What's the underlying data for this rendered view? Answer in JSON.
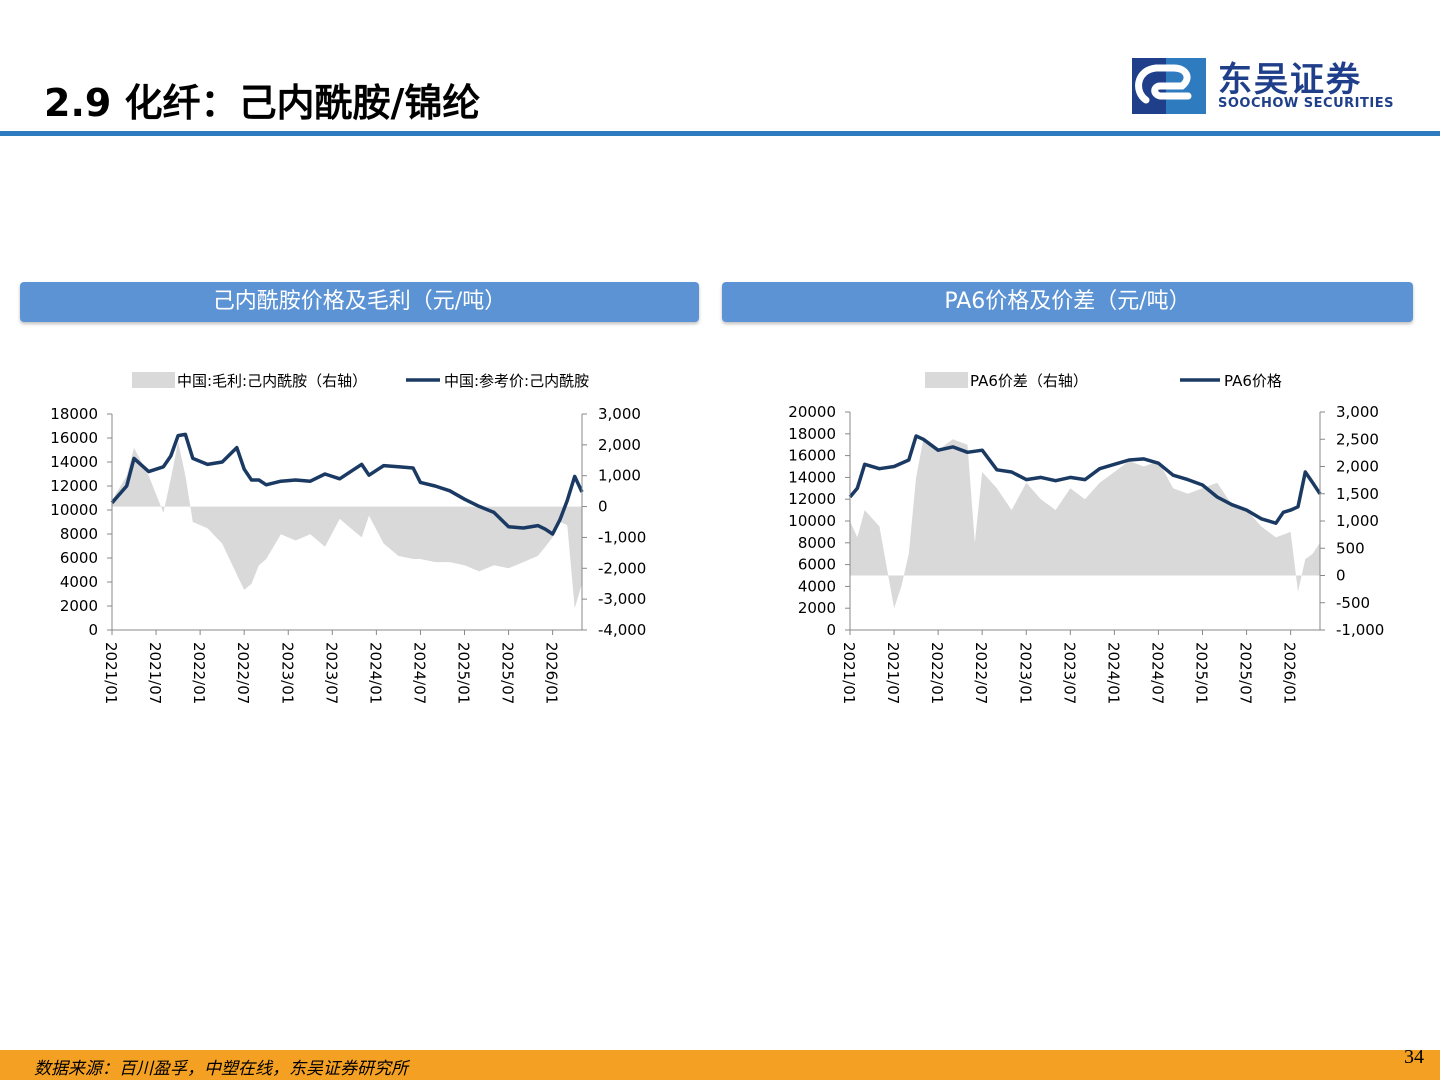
{
  "header": {
    "title": "2.9 化纤：己内酰胺/锦纶",
    "logo_cn": "东吴证券",
    "logo_en": "SOOCHOW SECURITIES"
  },
  "footer": {
    "source": "数据来源：百川盈孚，中塑在线，东吴证券研究所",
    "page_number": "34"
  },
  "colors": {
    "accent": "#2e7bbf",
    "panel_header": "#5b93d5",
    "line": "#1b3a63",
    "area": "#d9d9d9",
    "footer": "#f4a023",
    "logo": "#1f3f8a"
  },
  "chart_data": [
    {
      "type": "line+area",
      "title": "己内酰胺价格及毛利（元/吨）",
      "x_ticks": [
        "2021/01",
        "2021/07",
        "2022/01",
        "2022/07",
        "2023/01",
        "2023/07",
        "2024/01",
        "2024/07",
        "2025/01",
        "2025/07",
        "2026/01"
      ],
      "x_range": [
        "2021/01",
        "2026/05"
      ],
      "left_axis": {
        "min": 0,
        "max": 18000,
        "step": 2000,
        "labels": [
          "0",
          "2000",
          "4000",
          "6000",
          "8000",
          "10000",
          "12000",
          "14000",
          "16000",
          "18000"
        ]
      },
      "right_axis": {
        "min": -4000,
        "max": 3000,
        "step": 1000,
        "labels": [
          "-4,000",
          "-3,000",
          "-2,000",
          "-1,000",
          "0",
          "1,000",
          "2,000",
          "3,000"
        ]
      },
      "legend": {
        "area": "中国:毛利:己内酰胺（右轴）",
        "line": "中国:参考价:己内酰胺"
      },
      "line_series": {
        "name": "中国:参考价:己内酰胺",
        "x": [
          "2021/01",
          "2021/03",
          "2021/04",
          "2021/06",
          "2021/08",
          "2021/09",
          "2021/10",
          "2021/11",
          "2021/12",
          "2022/02",
          "2022/04",
          "2022/06",
          "2022/07",
          "2022/08",
          "2022/09",
          "2022/10",
          "2022/12",
          "2023/02",
          "2023/04",
          "2023/06",
          "2023/08",
          "2023/10",
          "2023/11",
          "2023/12",
          "2024/02",
          "2024/04",
          "2024/06",
          "2024/07",
          "2024/09",
          "2024/11",
          "2025/01",
          "2025/03",
          "2025/05",
          "2025/07",
          "2025/09",
          "2025/11",
          "2025/12",
          "2026/01",
          "2026/02",
          "2026/03",
          "2026/04",
          "2026/05"
        ],
        "values": [
          10600,
          12000,
          14300,
          13200,
          13600,
          14500,
          16200,
          16300,
          14300,
          13800,
          14000,
          15200,
          13400,
          12500,
          12500,
          12100,
          12400,
          12500,
          12400,
          13000,
          12600,
          13400,
          13800,
          12900,
          13700,
          13600,
          13500,
          12300,
          12000,
          11600,
          10900,
          10300,
          9800,
          8600,
          8500,
          8700,
          8400,
          8000,
          9200,
          10800,
          12800,
          11500
        ]
      },
      "area_series": {
        "name": "中国:毛利:己内酰胺（右轴）",
        "x": [
          "2021/01",
          "2021/03",
          "2021/04",
          "2021/06",
          "2021/08",
          "2021/09",
          "2021/10",
          "2021/11",
          "2021/12",
          "2022/02",
          "2022/04",
          "2022/06",
          "2022/07",
          "2022/08",
          "2022/09",
          "2022/10",
          "2022/12",
          "2023/02",
          "2023/04",
          "2023/06",
          "2023/08",
          "2023/10",
          "2023/11",
          "2023/12",
          "2024/02",
          "2024/04",
          "2024/06",
          "2024/07",
          "2024/09",
          "2024/11",
          "2025/01",
          "2025/03",
          "2025/05",
          "2025/07",
          "2025/09",
          "2025/11",
          "2025/12",
          "2026/01",
          "2026/02",
          "2026/03",
          "2026/04",
          "2026/05"
        ],
        "values": [
          200,
          1000,
          1900,
          1000,
          -200,
          900,
          2100,
          1000,
          -500,
          -700,
          -1200,
          -2200,
          -2700,
          -2500,
          -1900,
          -1700,
          -900,
          -1100,
          -900,
          -1300,
          -400,
          -800,
          -1000,
          -300,
          -1200,
          -1600,
          -1700,
          -1700,
          -1800,
          -1800,
          -1900,
          -2100,
          -1900,
          -2000,
          -1800,
          -1600,
          -1300,
          -1000,
          -500,
          -600,
          -3300,
          -2500
        ]
      }
    },
    {
      "type": "line+area",
      "title": "PA6价格及价差（元/吨）",
      "x_ticks": [
        "2021/01",
        "2021/07",
        "2022/01",
        "2022/07",
        "2023/01",
        "2023/07",
        "2024/01",
        "2024/07",
        "2025/01",
        "2025/07",
        "2026/01"
      ],
      "x_range": [
        "2021/01",
        "2026/05"
      ],
      "left_axis": {
        "min": 0,
        "max": 20000,
        "step": 2000,
        "labels": [
          "0",
          "2000",
          "4000",
          "6000",
          "8000",
          "10000",
          "12000",
          "14000",
          "16000",
          "18000",
          "20000"
        ]
      },
      "right_axis": {
        "min": -1000,
        "max": 3000,
        "step": 500,
        "labels": [
          "-1,000",
          "-500",
          "0",
          "500",
          "1,000",
          "1,500",
          "2,000",
          "2,500",
          "3,000"
        ]
      },
      "legend": {
        "area": "PA6价差（右轴）",
        "line": "PA6价格"
      },
      "line_series": {
        "name": "PA6价格",
        "x": [
          "2021/01",
          "2021/02",
          "2021/03",
          "2021/05",
          "2021/07",
          "2021/09",
          "2021/10",
          "2021/11",
          "2022/01",
          "2022/03",
          "2022/05",
          "2022/07",
          "2022/09",
          "2022/11",
          "2023/01",
          "2023/03",
          "2023/05",
          "2023/07",
          "2023/09",
          "2023/11",
          "2024/01",
          "2024/03",
          "2024/05",
          "2024/07",
          "2024/09",
          "2024/11",
          "2025/01",
          "2025/03",
          "2025/05",
          "2025/07",
          "2025/09",
          "2025/11",
          "2025/12",
          "2026/01",
          "2026/02",
          "2026/03",
          "2026/04",
          "2026/05"
        ],
        "values": [
          12200,
          13000,
          15200,
          14800,
          15000,
          15600,
          17800,
          17500,
          16500,
          16800,
          16300,
          16500,
          14700,
          14500,
          13800,
          14000,
          13700,
          14000,
          13800,
          14800,
          15200,
          15600,
          15700,
          15300,
          14200,
          13800,
          13300,
          12200,
          11500,
          11000,
          10200,
          9800,
          10800,
          11000,
          11300,
          14500,
          13500,
          12500
        ]
      },
      "area_series": {
        "name": "PA6价差（右轴）",
        "x": [
          "2021/01",
          "2021/02",
          "2021/03",
          "2021/05",
          "2021/07",
          "2021/08",
          "2021/09",
          "2021/10",
          "2021/11",
          "2022/01",
          "2022/03",
          "2022/05",
          "2022/06",
          "2022/07",
          "2022/09",
          "2022/11",
          "2023/01",
          "2023/03",
          "2023/05",
          "2023/07",
          "2023/09",
          "2023/11",
          "2024/01",
          "2024/03",
          "2024/05",
          "2024/07",
          "2024/09",
          "2024/11",
          "2025/01",
          "2025/03",
          "2025/05",
          "2025/07",
          "2025/09",
          "2025/11",
          "2026/01",
          "2026/02",
          "2026/03",
          "2026/04",
          "2026/05"
        ],
        "values": [
          1000,
          700,
          1200,
          900,
          -600,
          -200,
          400,
          1800,
          2500,
          2300,
          2500,
          2400,
          600,
          1900,
          1600,
          1200,
          1700,
          1400,
          1200,
          1600,
          1400,
          1700,
          1900,
          2100,
          2000,
          2100,
          1600,
          1500,
          1600,
          1700,
          1300,
          1200,
          900,
          700,
          800,
          -300,
          300,
          400,
          600
        ]
      }
    }
  ]
}
